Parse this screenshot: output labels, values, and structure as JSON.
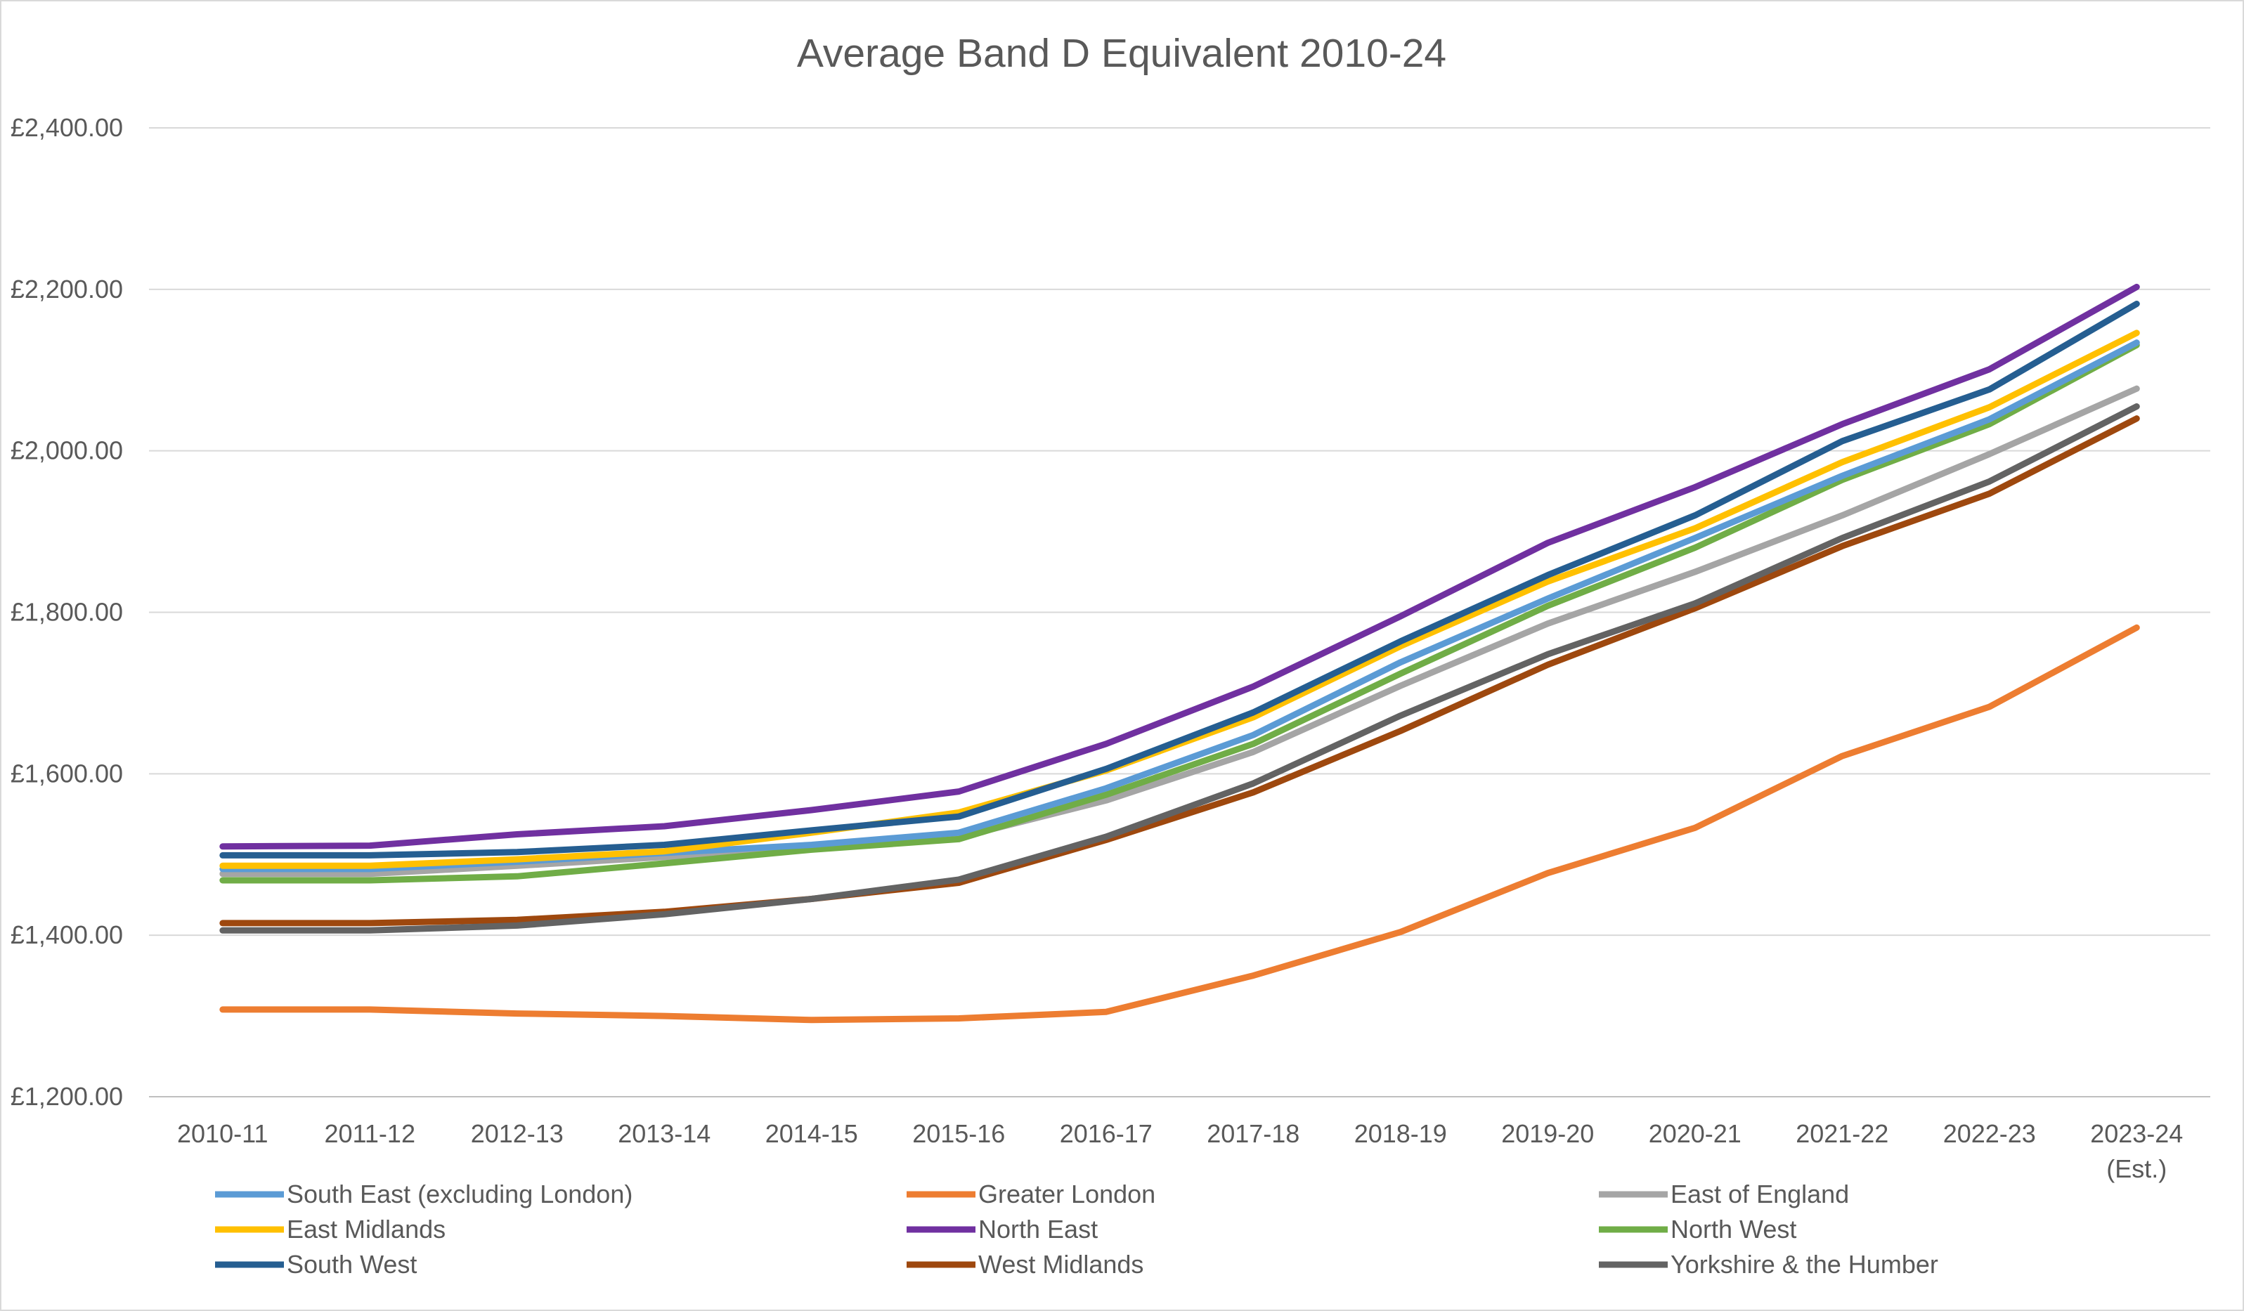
{
  "chart_data": {
    "type": "line",
    "title": "Average Band D Equivalent  2010-24",
    "xlabel": "",
    "ylabel": "",
    "categories": [
      "2010-11",
      "2011-12",
      "2012-13",
      "2013-14",
      "2014-15",
      "2015-16",
      "2016-17",
      "2017-18",
      "2018-19",
      "2019-20",
      "2020-21",
      "2021-22",
      "2022-23",
      "2023-24 (Est.)"
    ],
    "ylim": [
      1200,
      2400
    ],
    "yticks": [
      "£1,200.00",
      "£1,400.00",
      "£1,600.00",
      "£1,800.00",
      "£2,000.00",
      "£2,200.00",
      "£2,400.00"
    ],
    "grid": true,
    "legend_position": "bottom",
    "series": [
      {
        "name": "South East (excluding London)",
        "color": "#5B9BD5",
        "values": [
          1482,
          1482,
          1491,
          1502,
          1512,
          1527,
          1582,
          1648,
          1738,
          1817,
          1892,
          1969,
          2039,
          2134
        ]
      },
      {
        "name": "Greater London",
        "color": "#ED7D31",
        "values": [
          1308,
          1308,
          1303,
          1300,
          1295,
          1297,
          1305,
          1350,
          1404,
          1477,
          1533,
          1622,
          1683,
          1781
        ]
      },
      {
        "name": "East of England",
        "color": "#A5A5A5",
        "values": [
          1476,
          1476,
          1486,
          1497,
          1507,
          1521,
          1567,
          1627,
          1709,
          1786,
          1850,
          1920,
          1996,
          2077
        ]
      },
      {
        "name": "East Midlands",
        "color": "#FFC000",
        "values": [
          1486,
          1486,
          1494,
          1504,
          1527,
          1552,
          1604,
          1670,
          1758,
          1838,
          1904,
          1986,
          2054,
          2146
        ]
      },
      {
        "name": "North East",
        "color": "#7030A0",
        "values": [
          1510,
          1511,
          1525,
          1535,
          1555,
          1578,
          1637,
          1708,
          1795,
          1886,
          1955,
          2033,
          2101,
          2203
        ]
      },
      {
        "name": "North West",
        "color": "#70AD47",
        "values": [
          1468,
          1468,
          1473,
          1489,
          1506,
          1519,
          1574,
          1637,
          1724,
          1808,
          1880,
          1964,
          2033,
          2131
        ]
      },
      {
        "name": "South West",
        "color": "#255E91",
        "values": [
          1499,
          1499,
          1503,
          1512,
          1530,
          1547,
          1606,
          1676,
          1764,
          1846,
          1920,
          2012,
          2076,
          2182
        ]
      },
      {
        "name": "West Midlands",
        "color": "#9E480E",
        "values": [
          1415,
          1415,
          1419,
          1429,
          1445,
          1465,
          1518,
          1577,
          1653,
          1735,
          1805,
          1882,
          1947,
          2040
        ]
      },
      {
        "name": "Yorkshire & the Humber",
        "color": "#636363",
        "values": [
          1406,
          1406,
          1412,
          1426,
          1445,
          1469,
          1522,
          1588,
          1672,
          1748,
          1811,
          1892,
          1962,
          2055
        ]
      }
    ]
  }
}
